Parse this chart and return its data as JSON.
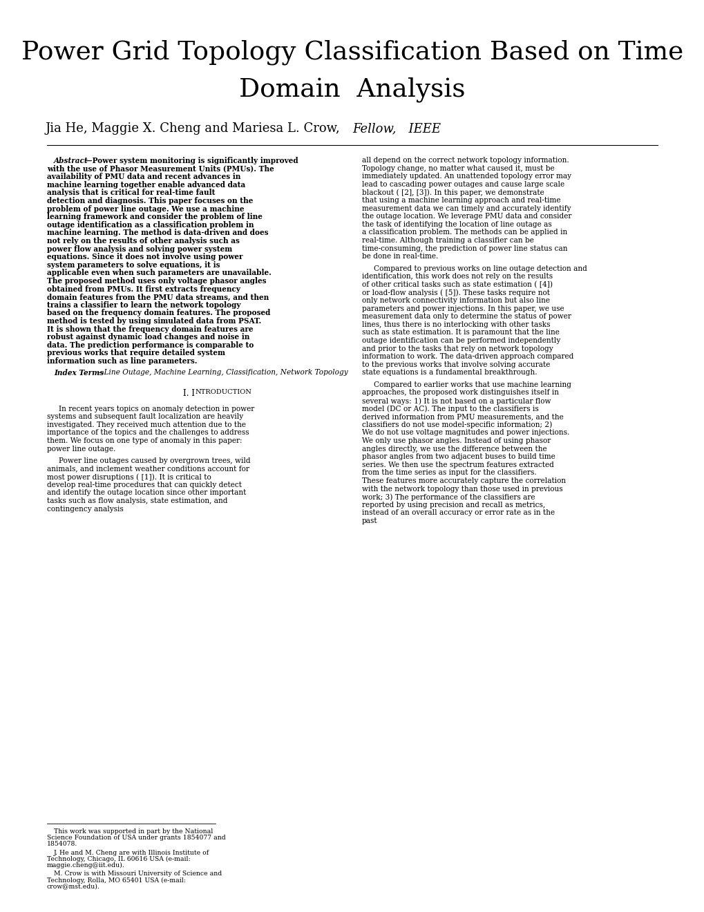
{
  "title_line1": "Power Grid Topology Classification Based on Time",
  "title_line2": "Domain  Analysis",
  "authors_normal": "Jia He, Maggie X. Cheng and Mariesa L. Crow,  ",
  "authors_italic": "Fellow,  IEEE",
  "abstract_text": "Power system monitoring is significantly improved with the use of Phasor Measurement Units (PMUs). The availability of PMU data and recent advances in machine learning together enable advanced data analysis that is critical for real-time fault detection and diagnosis. This paper focuses on the problem of power line outage. We use a machine learning framework and consider the problem of line outage identification as a classification problem in machine learning. The method is data-driven and does not rely on the results of other analysis such as power flow analysis and solving power system equations. Since it does not involve using power system parameters to solve equations, it is applicable even when such parameters are unavailable. The proposed method uses only voltage phasor angles obtained from PMUs. It first extracts frequency domain features from the PMU data streams, and then trains a classifier to learn the network topology based on the frequency domain features. The proposed method is tested by using simulated data from PSAT. It is shown that the frequency domain features are robust against dynamic load changes and noise in data. The prediction performance is comparable to previous works that require detailed system information such as line parameters.",
  "index_text": "Line Outage, Machine Learning, Classification, Network Topology",
  "intro_p1": "In recent years topics on anomaly detection in power systems and subsequent fault localization are heavily investigated. They received much attention due to the importance of the topics and the challenges to address them. We focus on one type of anomaly in this paper: power line outage.",
  "intro_p2": "Power line outages caused by overgrown trees, wild animals, and inclement weather conditions account for most power disruptions ( [1]). It is critical to develop real-time procedures that can quickly detect and identify the outage location since other important tasks such as flow analysis, state estimation, and contingency analysis",
  "footnote1": "This work was supported in part by the National Science Foundation of USA under grants 1854077 and 1854078.",
  "footnote2": "J. He and M. Cheng are with Illinois Institute of Technology, Chicago, IL 60616 USA (e-mail: maggie.cheng@iit.edu).",
  "footnote3": "M. Crow is with Missouri University of Science and Technology, Rolla, MO 65401 USA (e-mail: crow@mst.edu).",
  "right_col_p1": "all depend on the correct network topology information. Topology change, no matter what caused it, must be immediately updated. An unattended topology error may lead to cascading power outages and cause large scale blackout ( [2], [3]). In this paper, we demonstrate that using a machine learning approach and real-time measurement data we can timely and accurately identify the outage location. We leverage PMU data and consider the task of identifying the location of line outage as a classification problem. The methods can be applied in real-time. Although training a classifier can be time-consuming, the prediction of power line status can be done in real-time.",
  "right_col_p2": "Compared to previous works on line outage detection and identification, this work does not rely on the results of other critical tasks such as state estimation ( [4]) or load-flow analysis ( [5]). These tasks require not only network connectivity information but also line parameters and power injections. In this paper, we use measurement data only to determine the status of power lines, thus there is no interlocking with other tasks such as state estimation. It is paramount that the line outage identification can be performed independently and prior to the tasks that rely on network topology information to work. The data-driven approach compared to the previous works that involve solving accurate state equations is a fundamental breakthrough.",
  "right_col_p3": "Compared to earlier works that use machine learning approaches, the proposed work distinguishes itself in several ways: 1) It is not based on a particular flow model (DC or AC). The input to the classifiers is derived information from PMU measurements, and the classifiers do not use model-specific information; 2) We do not use voltage magnitudes and power injections. We only use phasor angles. Instead of using phasor angles directly, we use the difference between the phasor angles from two adjacent buses to build time series. We then use the spectrum features extracted from the time series as input for the classifiers. These features more accurately capture the correlation with the network topology than those used in previous work; 3) The performance of the classifiers are reported by using precision and recall as metrics, instead of an overall accuracy or error rate as in the past",
  "bg_color": "#ffffff"
}
